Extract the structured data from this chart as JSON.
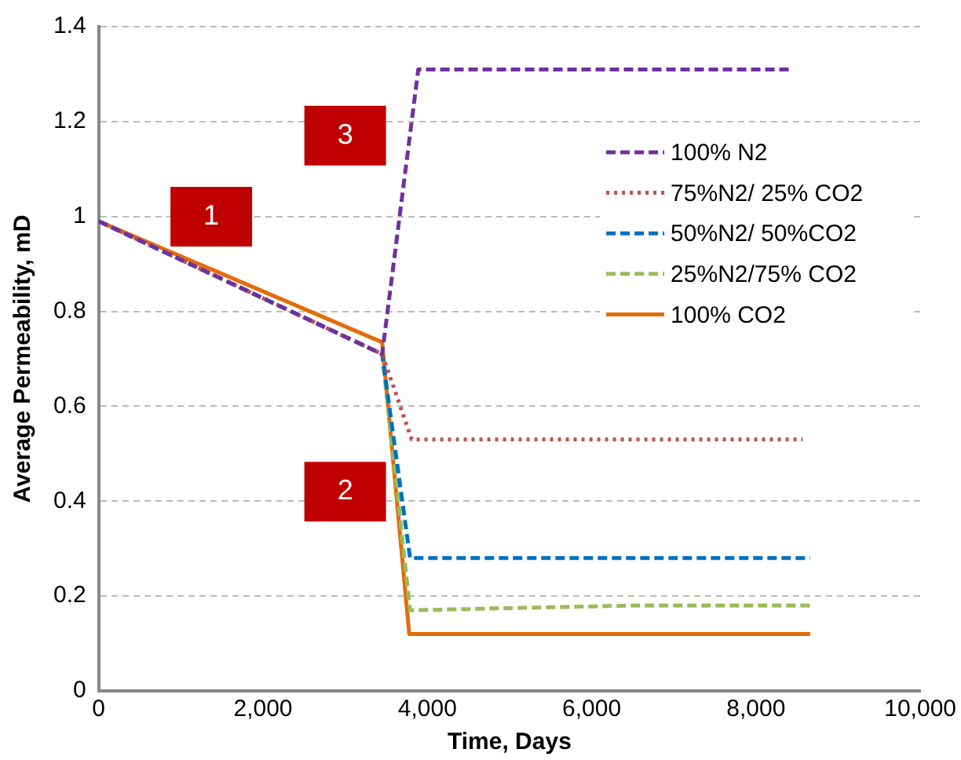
{
  "chart_data": {
    "type": "line",
    "xlabel": "Time, Days",
    "ylabel": "Average Permeability, mD",
    "xlim": [
      0,
      10000
    ],
    "xticks": [
      0,
      {
        "value": 2000,
        "label": "2,000"
      },
      {
        "value": 4000,
        "label": "4,000"
      },
      {
        "value": 6000,
        "label": "6,000"
      },
      {
        "value": 8000,
        "label": "8,000"
      },
      {
        "value": 10000,
        "label": "10,000"
      }
    ],
    "ylim": [
      0,
      1.4
    ],
    "yticks": [
      0,
      0.2,
      0.4,
      0.6,
      0.8,
      1,
      1.2,
      1.4
    ],
    "grid": "y",
    "legend": "top right",
    "marker": "none",
    "series": [
      {
        "name": "100% N2",
        "color": "#7030a0",
        "line_style": "dashed",
        "x": [
          0,
          3450,
          3890,
          8410
        ],
        "values": [
          0.99,
          0.71,
          1.31,
          1.31
        ]
      },
      {
        "name": "75%N2/ 25% CO2",
        "color": "#c0504d",
        "line_style": "dotted",
        "x": [
          0,
          3450,
          3810,
          8570
        ],
        "values": [
          0.99,
          0.71,
          0.53,
          0.53
        ]
      },
      {
        "name": "50%N2/ 50%CO2",
        "color": "#0070c0",
        "line_style": "dashed",
        "x": [
          0,
          3450,
          3790,
          8660
        ],
        "values": [
          0.99,
          0.71,
          0.28,
          0.28
        ]
      },
      {
        "name": "25%N2/75% CO2",
        "color": "#9bbb59",
        "line_style": "dashed",
        "x": [
          0,
          3450,
          3790,
          6500,
          8660
        ],
        "values": [
          0.99,
          0.71,
          0.17,
          0.18,
          0.18
        ]
      },
      {
        "name": "100% CO2",
        "color": "#e36c09",
        "line_style": "solid",
        "x": [
          0,
          3450,
          3780,
          8660
        ],
        "values": [
          0.99,
          0.735,
          0.12,
          0.12
        ]
      }
    ],
    "annotations": [
      "1",
      "2",
      "3"
    ]
  }
}
